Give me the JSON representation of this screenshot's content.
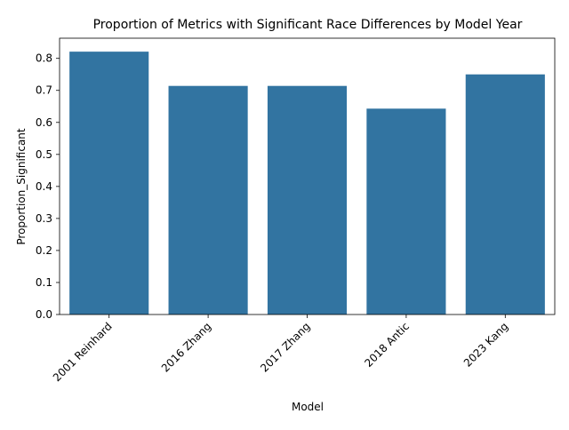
{
  "chart_data": {
    "type": "bar",
    "title": "Proportion of Metrics with Significant Race Differences by Model Year",
    "xlabel": "Model",
    "ylabel": "Proportion_Significant",
    "categories": [
      "2001 Reinhard",
      "2016 Zhang",
      "2017 Zhang",
      "2018 Antic",
      "2023 Kang"
    ],
    "values": [
      0.821,
      0.714,
      0.714,
      0.643,
      0.75
    ],
    "ylim": [
      0,
      0.863
    ],
    "yticks": [
      0.0,
      0.1,
      0.2,
      0.3,
      0.4,
      0.5,
      0.6,
      0.7,
      0.8
    ],
    "ytick_labels": [
      "0.0",
      "0.1",
      "0.2",
      "0.3",
      "0.4",
      "0.5",
      "0.6",
      "0.7",
      "0.8"
    ],
    "grid": false,
    "legend": "none",
    "bar_color": "#3274a1"
  }
}
